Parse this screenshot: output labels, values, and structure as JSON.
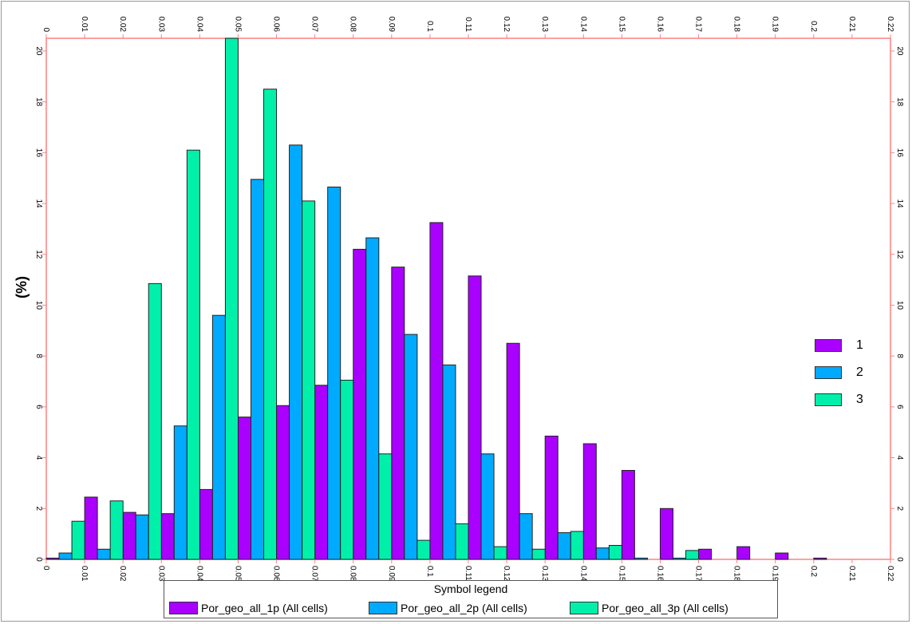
{
  "chart_data": {
    "type": "bar",
    "ylabel": "(%)",
    "xlim": [
      0,
      0.22
    ],
    "ylim": [
      0,
      20.5
    ],
    "x_ticks": [
      "0",
      "0.01",
      "0.02",
      "0.03",
      "0.04",
      "0.05",
      "0.06",
      "0.07",
      "0.08",
      "0.09",
      "0.1",
      "0.11",
      "0.12",
      "0.13",
      "0.14",
      "0.15",
      "0.16",
      "0.17",
      "0.18",
      "0.19",
      "0.2",
      "0.21",
      "0.22"
    ],
    "y_ticks": [
      "0",
      "2",
      "4",
      "6",
      "8",
      "10",
      "12",
      "14",
      "16",
      "18",
      "20"
    ],
    "bin_width": 0.01,
    "bins": [
      0,
      0.01,
      0.02,
      0.03,
      0.04,
      0.05,
      0.06,
      0.07,
      0.08,
      0.09,
      0.1,
      0.11,
      0.12,
      0.13,
      0.14,
      0.15,
      0.16,
      0.17,
      0.18,
      0.19,
      0.2,
      0.21
    ],
    "series": [
      {
        "name": "Por_geo_all_1p (All cells)",
        "color": "#aa00ff",
        "values": [
          0.05,
          2.45,
          1.85,
          1.8,
          2.75,
          5.6,
          6.05,
          6.85,
          12.2,
          11.5,
          13.25,
          11.15,
          8.5,
          4.85,
          4.55,
          3.5,
          2.0,
          0.4,
          0.5,
          0.25,
          0.05,
          0
        ]
      },
      {
        "name": "Por_geo_all_2p (All cells)",
        "color": "#00aaff",
        "values": [
          0.25,
          0.4,
          1.75,
          5.25,
          9.6,
          14.95,
          16.3,
          14.65,
          12.65,
          8.85,
          7.65,
          4.15,
          1.8,
          1.05,
          0.45,
          0.05,
          0.05,
          0,
          0,
          0,
          0,
          0
        ]
      },
      {
        "name": "Por_geo_all_3p (All cells)",
        "color": "#00f0aa",
        "values": [
          1.5,
          2.3,
          10.85,
          16.1,
          20.5,
          18.5,
          14.1,
          7.05,
          4.15,
          0.75,
          1.4,
          0.5,
          0.4,
          1.1,
          0.55,
          0,
          0.35,
          0,
          0,
          0,
          0,
          0
        ]
      }
    ],
    "legend_title": "Symbol legend",
    "legend_placement": "bottom",
    "side_legend_placement": "right",
    "side_legend_labels": [
      "1",
      "2",
      "3"
    ],
    "grid": false,
    "axis_color": "#ff8080"
  }
}
